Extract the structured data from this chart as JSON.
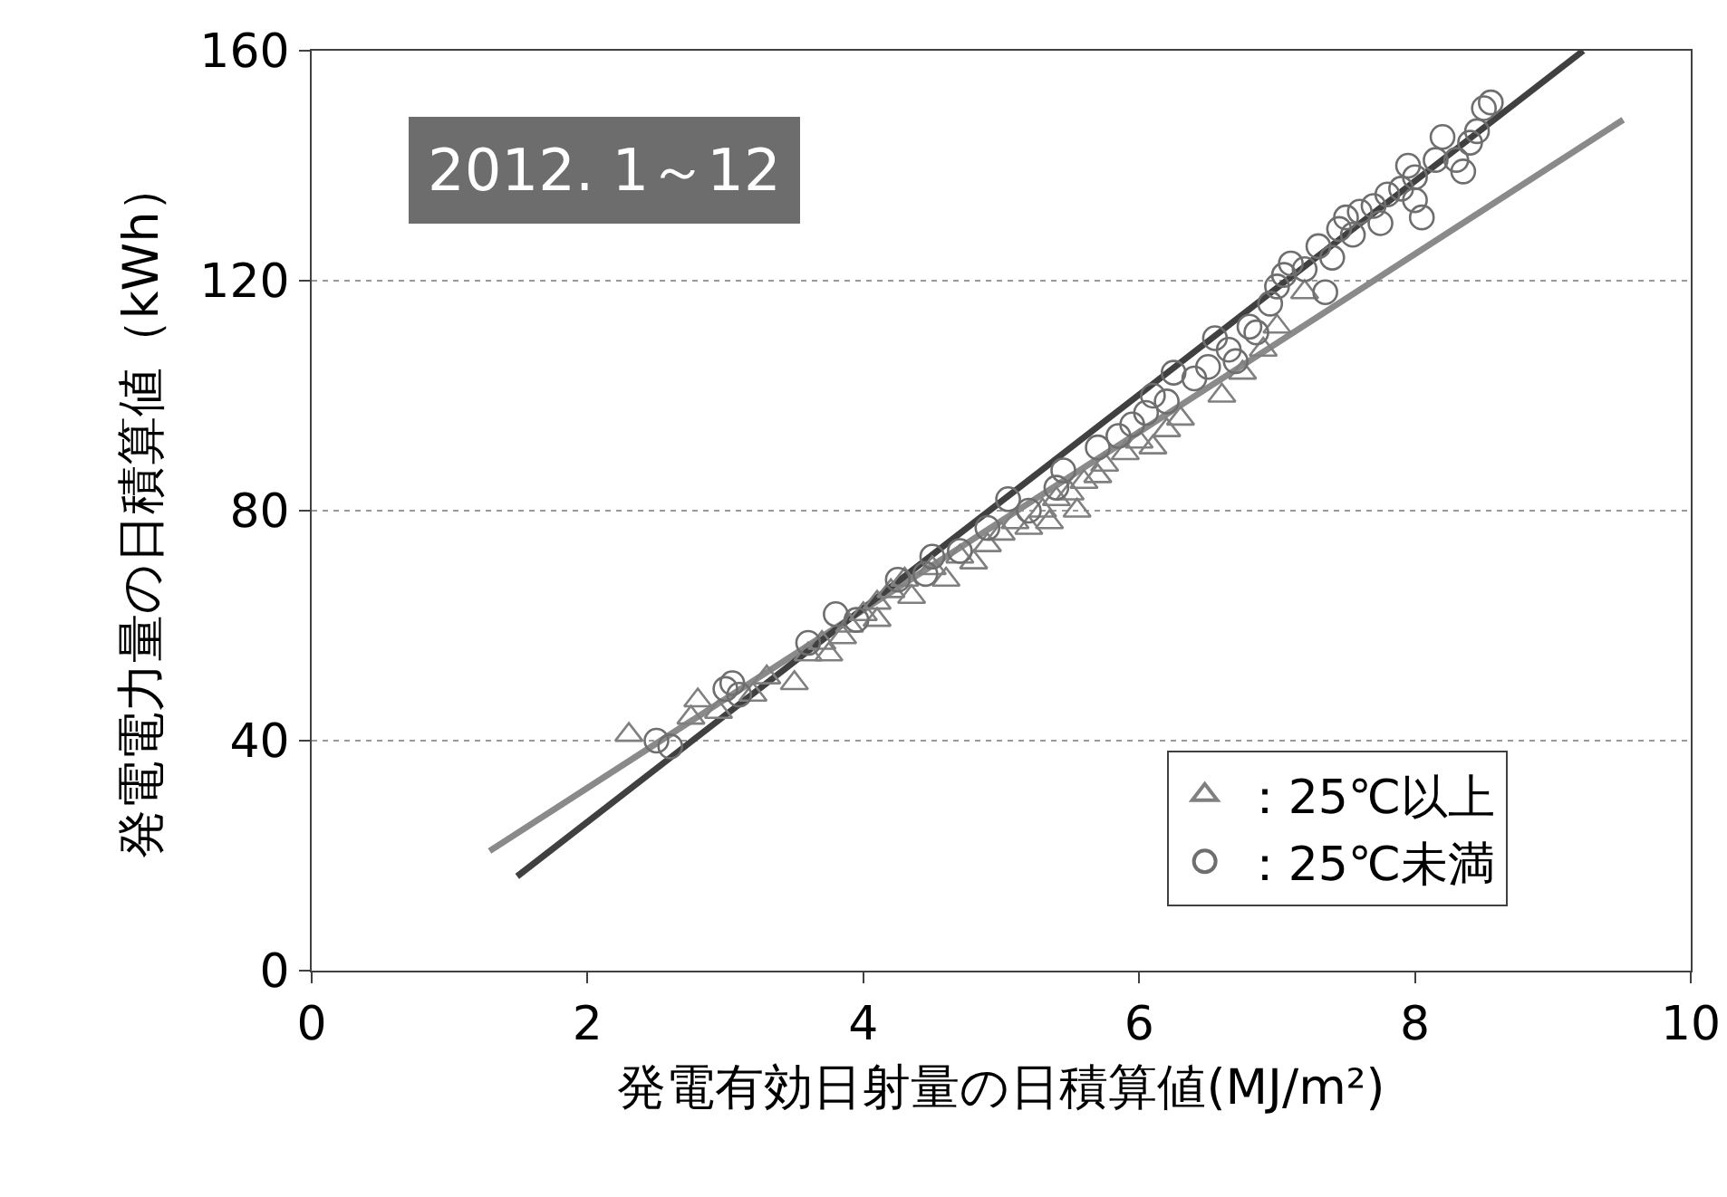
{
  "chart_data": {
    "type": "scatter",
    "xlabel": "発電有効日射量の日積算値(MJ/m²)",
    "ylabel": "発電電力量の日積算値（kWh）",
    "annotations": [
      "2012. 1～12"
    ],
    "xlim": [
      0,
      10
    ],
    "xticks": [
      0,
      2,
      4,
      6,
      8,
      10
    ],
    "ylim": [
      0,
      160
    ],
    "yticks": [
      0,
      40,
      80,
      120,
      160
    ],
    "grid": "y",
    "legend": "bottom right",
    "series": [
      {
        "name": "：25℃以上",
        "marker": "triangle",
        "color": "#808080",
        "x": [
          2.3,
          2.75,
          2.8,
          2.95,
          3.2,
          3.3,
          3.5,
          3.6,
          3.7,
          3.75,
          3.85,
          3.9,
          4.0,
          4.1,
          4.1,
          4.2,
          4.3,
          4.35,
          4.5,
          4.6,
          4.7,
          4.8,
          4.9,
          5.0,
          5.1,
          5.2,
          5.3,
          5.35,
          5.4,
          5.5,
          5.55,
          5.6,
          5.7,
          5.75,
          5.9,
          6.0,
          6.1,
          6.2,
          6.3,
          6.6,
          6.75,
          6.9,
          7.0,
          7.2
        ],
        "values": [
          41,
          44,
          47,
          45,
          48,
          51,
          50,
          55,
          57,
          55,
          58,
          60,
          62,
          61,
          64,
          66,
          68,
          65,
          70,
          68,
          72,
          71,
          74,
          76,
          78,
          77,
          80,
          78,
          82,
          83,
          80,
          85,
          86,
          88,
          90,
          92,
          91,
          94,
          96,
          100,
          104,
          108,
          112,
          118
        ]
      },
      {
        "name": "：25℃未満",
        "marker": "circle",
        "color": "#6e6e6e",
        "x": [
          2.5,
          2.6,
          3.0,
          3.05,
          3.1,
          3.6,
          3.8,
          3.95,
          4.25,
          4.45,
          4.5,
          4.7,
          4.9,
          5.05,
          5.2,
          5.4,
          5.45,
          5.7,
          5.85,
          5.95,
          6.05,
          6.1,
          6.2,
          6.25,
          6.4,
          6.5,
          6.55,
          6.65,
          6.7,
          6.8,
          6.85,
          6.95,
          7.0,
          7.05,
          7.1,
          7.2,
          7.3,
          7.35,
          7.4,
          7.45,
          7.5,
          7.55,
          7.6,
          7.7,
          7.75,
          7.8,
          7.9,
          7.95,
          8.0,
          8.0,
          8.05,
          8.15,
          8.2,
          8.3,
          8.35,
          8.4,
          8.45,
          8.5,
          8.55
        ],
        "values": [
          40,
          39,
          49,
          50,
          48,
          57,
          62,
          61,
          68,
          69,
          72,
          73,
          77,
          82,
          80,
          84,
          87,
          91,
          93,
          95,
          97,
          100,
          99,
          104,
          103,
          105,
          110,
          108,
          106,
          112,
          111,
          116,
          119,
          121,
          123,
          122,
          126,
          118,
          124,
          129,
          131,
          128,
          132,
          133,
          130,
          135,
          136,
          140,
          138,
          134,
          131,
          141,
          145,
          141,
          139,
          144,
          146,
          150,
          151
        ]
      },
      {
        "type": "line",
        "color": "#8a8a8a",
        "x": [
          1.29,
          9.51
        ],
        "values": [
          20.8,
          148
        ]
      },
      {
        "type": "line",
        "color": "#404040",
        "x": [
          1.49,
          9.22
        ],
        "values": [
          16.4,
          160
        ]
      }
    ]
  }
}
